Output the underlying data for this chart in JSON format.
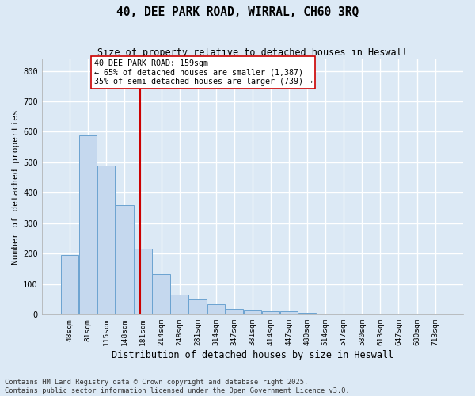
{
  "title": "40, DEE PARK ROAD, WIRRAL, CH60 3RQ",
  "subtitle": "Size of property relative to detached houses in Heswall",
  "xlabel": "Distribution of detached houses by size in Heswall",
  "ylabel": "Number of detached properties",
  "bar_color": "#c5d8ee",
  "bar_edge_color": "#6ba3d0",
  "background_color": "#dce9f5",
  "fig_background": "#dce9f5",
  "grid_color": "#ffffff",
  "annotation_line_color": "#cc0000",
  "annotation_box_text": "40 DEE PARK ROAD: 159sqm\n← 65% of detached houses are smaller (1,387)\n35% of semi-detached houses are larger (739) →",
  "categories": [
    "48sqm",
    "81sqm",
    "115sqm",
    "148sqm",
    "181sqm",
    "214sqm",
    "248sqm",
    "281sqm",
    "314sqm",
    "347sqm",
    "381sqm",
    "414sqm",
    "447sqm",
    "480sqm",
    "514sqm",
    "547sqm",
    "580sqm",
    "613sqm",
    "647sqm",
    "680sqm",
    "713sqm"
  ],
  "values": [
    196,
    588,
    488,
    358,
    217,
    133,
    65,
    50,
    35,
    18,
    12,
    11,
    11,
    6,
    2,
    0,
    0,
    0,
    0,
    0,
    0
  ],
  "ylim": [
    0,
    840
  ],
  "yticks": [
    0,
    100,
    200,
    300,
    400,
    500,
    600,
    700,
    800
  ],
  "footer": "Contains HM Land Registry data © Crown copyright and database right 2025.\nContains public sector information licensed under the Open Government Licence v3.0.",
  "figsize": [
    6.0,
    5.0
  ],
  "dpi": 100,
  "red_line_index": 2.67
}
